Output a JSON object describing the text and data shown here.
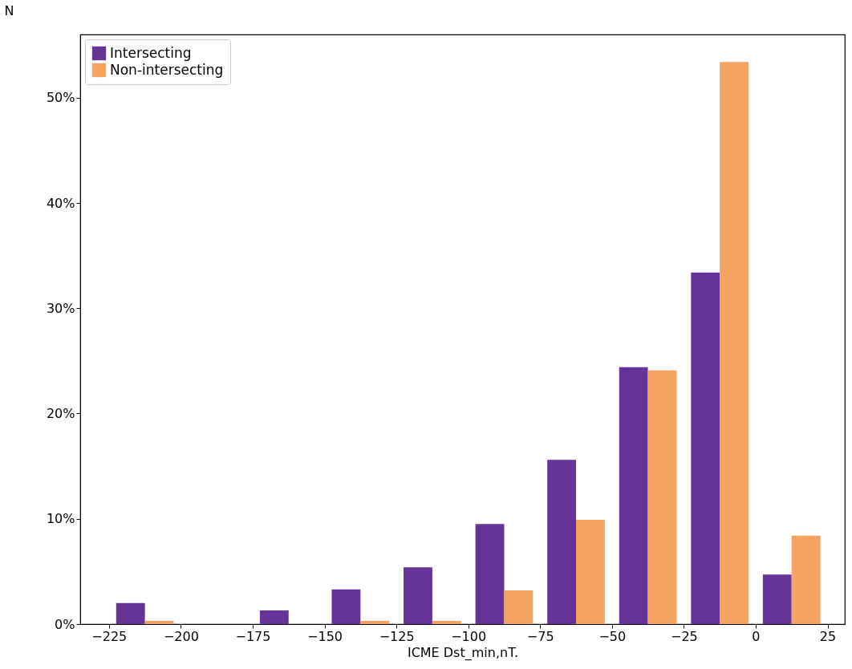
{
  "chart_data": {
    "type": "histogram",
    "xlabel": "ICME Dst_min,nT.",
    "ylabel": "N",
    "bins": [
      -225,
      -200,
      -175,
      -150,
      -125,
      -100,
      -75,
      -50,
      -25,
      0,
      25
    ],
    "series": [
      {
        "name": "Intersecting",
        "color": "#663399",
        "values": [
          2.0,
          0,
          1.3,
          3.3,
          5.4,
          9.5,
          15.6,
          24.4,
          33.4,
          4.7
        ]
      },
      {
        "name": "Non-intersecting",
        "color": "#f4a460",
        "values": [
          0.3,
          0,
          0,
          0.3,
          0.3,
          3.2,
          9.9,
          24.1,
          53.4,
          8.4
        ]
      }
    ],
    "xlim": [
      -235,
      31
    ],
    "ylim": [
      0,
      56
    ],
    "xticks": [
      {
        "value": -225,
        "label": "−225"
      },
      {
        "value": -200,
        "label": "−200"
      },
      {
        "value": -175,
        "label": "−175"
      },
      {
        "value": -150,
        "label": "−150"
      },
      {
        "value": -125,
        "label": "−125"
      },
      {
        "value": -100,
        "label": "−100"
      },
      {
        "value": -75,
        "label": "−75"
      },
      {
        "value": -50,
        "label": "−50"
      },
      {
        "value": -25,
        "label": "−25"
      },
      0,
      25
    ],
    "yticks": [
      {
        "value": 0,
        "label": "0%"
      },
      {
        "value": 10,
        "label": "10%"
      },
      {
        "value": 20,
        "label": "20%"
      },
      {
        "value": 30,
        "label": "30%"
      },
      {
        "value": 40,
        "label": "40%"
      },
      {
        "value": 50,
        "label": "50%"
      }
    ],
    "legend": "top left",
    "grid": false
  }
}
